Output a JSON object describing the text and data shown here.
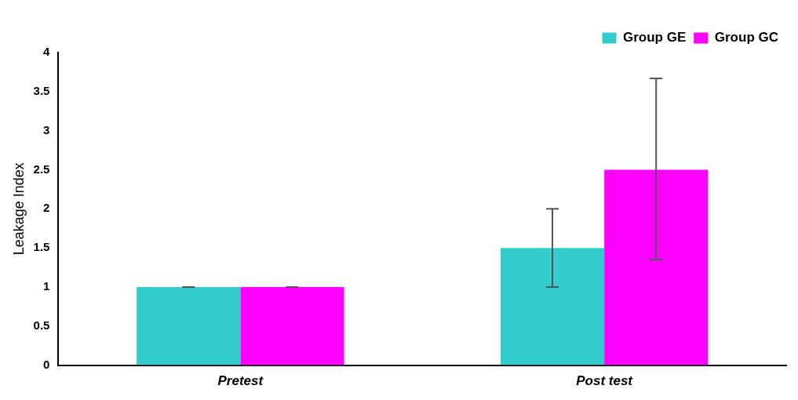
{
  "chart_data": {
    "type": "bar",
    "ylabel": "Leakage Index",
    "categories": [
      "Pretest",
      "Post test"
    ],
    "series": [
      {
        "name": "Group GE",
        "color": "#33cccc",
        "values": [
          1,
          1.5
        ],
        "errors": [
          0,
          [
            1.0,
            2.0
          ]
        ]
      },
      {
        "name": "Group GC",
        "color": "#ff00ff",
        "values": [
          1,
          2.5
        ],
        "errors": [
          0,
          [
            1.35,
            3.67
          ]
        ]
      }
    ],
    "ylim": [
      0,
      4
    ],
    "yticks": [
      0,
      0.5,
      1,
      1.5,
      2,
      2.5,
      3,
      3.5,
      4
    ],
    "grid": false,
    "legend": "top right"
  }
}
